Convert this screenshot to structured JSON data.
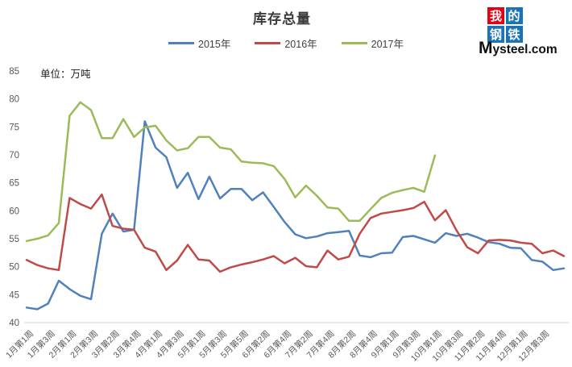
{
  "header": {
    "title": "库存总量"
  },
  "unit_label": "单位：万吨",
  "logo": {
    "tiles": [
      {
        "char": "我",
        "bg": "#e60012"
      },
      {
        "char": "的",
        "bg": "#1a72b9"
      },
      {
        "char": "钢",
        "bg": "#1a72b9"
      },
      {
        "char": "铁",
        "bg": "#1a72b9"
      }
    ],
    "brand": "Mysteel.com"
  },
  "chart_data": {
    "type": "line",
    "title": "库存总量",
    "unit": "万吨",
    "ylim": [
      40,
      85
    ],
    "yticks": [
      40,
      45,
      50,
      55,
      60,
      65,
      70,
      75,
      80,
      85
    ],
    "grid": false,
    "legend_position": "top",
    "axis_line_color": "#d9d9d9",
    "tick_label_color": "#595959",
    "n_points": 51,
    "label_every": 2,
    "x_labels": [
      "1月第1周",
      "1月第3周",
      "2月第1周",
      "2月第3周",
      "3月第2周",
      "3月第4周",
      "4月第1周",
      "4月第3周",
      "5月第1周",
      "5月第3周",
      "5月第5周",
      "6月第2周",
      "6月第4周",
      "7月第2周",
      "7月第4周",
      "8月第2周",
      "8月第4周",
      "9月第1周",
      "9月第3周",
      "10月第1周",
      "10月第3周",
      "11月第2周",
      "11月第4周",
      "12月第1周",
      "12月第3周"
    ],
    "series": [
      {
        "name": "2015年",
        "color": "#4f81bd",
        "values": [
          42.7,
          42.4,
          43.4,
          47.5,
          46.0,
          44.8,
          44.2,
          55.9,
          59.5,
          56.3,
          56.6,
          76.0,
          71.3,
          69.6,
          64.1,
          66.8,
          62.1,
          66.1,
          62.2,
          63.9,
          63.9,
          61.9,
          63.3,
          60.7,
          58.0,
          55.8,
          55.1,
          55.4,
          56.0,
          56.2,
          56.4,
          52.0,
          51.7,
          52.4,
          52.5,
          55.3,
          55.5,
          54.9,
          54.3,
          56.0,
          55.5,
          55.9,
          55.2,
          54.4,
          54.1,
          53.4,
          53.3,
          51.2,
          50.9,
          49.4,
          49.7
        ]
      },
      {
        "name": "2016年",
        "color": "#be4b48",
        "values": [
          51.2,
          50.3,
          49.7,
          49.4,
          62.3,
          61.2,
          60.4,
          62.9,
          57.3,
          56.8,
          56.6,
          53.4,
          52.7,
          49.4,
          51.1,
          53.9,
          51.3,
          51.1,
          49.1,
          49.9,
          50.4,
          50.8,
          51.3,
          51.9,
          50.6,
          51.6,
          50.1,
          49.9,
          52.9,
          51.3,
          51.8,
          55.9,
          58.7,
          59.5,
          59.8,
          60.1,
          60.5,
          61.6,
          58.3,
          60.1,
          56.5,
          53.5,
          52.4,
          54.7,
          54.8,
          54.7,
          54.3,
          54.1,
          52.4,
          52.9,
          51.9
        ]
      },
      {
        "name": "2017年",
        "color": "#9bbb59",
        "values": [
          54.6,
          55.0,
          55.6,
          57.8,
          77.0,
          79.4,
          78.0,
          73.0,
          73.0,
          76.4,
          73.2,
          74.9,
          75.2,
          72.6,
          70.8,
          71.2,
          73.2,
          73.2,
          71.3,
          71.0,
          68.8,
          68.6,
          68.5,
          68.0,
          65.7,
          62.4,
          64.5,
          62.7,
          60.6,
          60.4,
          58.2,
          58.2,
          60.3,
          62.3,
          63.2,
          63.7,
          64.1,
          63.4,
          69.9,
          null,
          null,
          null,
          null,
          null,
          null,
          null,
          null,
          null,
          null,
          null,
          null
        ]
      }
    ]
  }
}
